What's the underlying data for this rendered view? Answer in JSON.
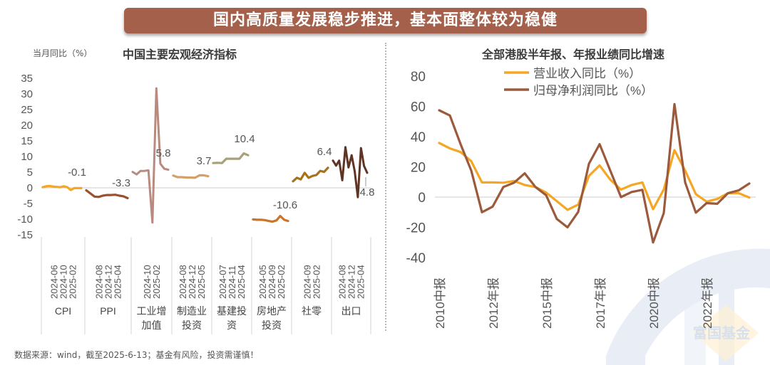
{
  "banner": {
    "title": "国内高质量发展稳步推进，基本面整体较为稳健"
  },
  "footer": {
    "text": "数据来源：wind，截至2025-6-13；基金有风险，投资需谨慎！"
  },
  "watermark": {
    "text": "富国基金"
  },
  "colors": {
    "banner": "#a4604a",
    "revenue": "#f5a623",
    "profit": "#9c5a3c",
    "zero": "#cccccc"
  },
  "chart_data": [
    {
      "type": "line",
      "title": "中国主要宏观经济指标",
      "ylabel": "当月同比（%）",
      "ylim": [
        -15,
        35
      ],
      "yticks": [
        35,
        30,
        25,
        20,
        15,
        10,
        5,
        0,
        -5,
        -10,
        -15
      ],
      "grid": false,
      "groups": [
        {
          "name": "CPI",
          "color": "#f5a623",
          "ticks": [
            "2024-06",
            "2024-10",
            "2025-02"
          ],
          "end_label": "-0.1",
          "values": [
            0.2,
            0.5,
            0.6,
            0.4,
            0.3,
            0.2,
            0.5,
            0.2,
            -0.7,
            -0.1,
            -0.1,
            -0.1
          ]
        },
        {
          "name": "PPI",
          "color": "#9c4f2e",
          "ticks": [
            "2024-08",
            "2024-12",
            "2025-04"
          ],
          "end_label": "-3.3",
          "values": [
            -0.8,
            -1.8,
            -2.8,
            -2.9,
            -2.5,
            -2.3,
            -2.3,
            -2.2,
            -2.5,
            -2.7,
            -3.3
          ]
        },
        {
          "name": "工业增加值",
          "color": "#b98a7e",
          "ticks": [
            "2024-10",
            "2025-02"
          ],
          "end_label": "5.8",
          "values": [
            5.1,
            4.3,
            5.4,
            5.4,
            5.6,
            -11.1,
            31.8,
            7.7,
            6.1,
            5.8
          ]
        },
        {
          "name": "制造业投资",
          "color": "#d4a06a",
          "ticks": [
            "2024-08",
            "2024-12",
            "2025-05"
          ],
          "end_label": "3.7",
          "values": [
            3.9,
            3.4,
            3.4,
            3.3,
            3.3,
            3.2,
            4.0,
            4.0,
            3.7
          ]
        },
        {
          "name": "基建投资",
          "color": "#a8a07a",
          "ticks": [
            "2024-07",
            "2024-11",
            "2025-04"
          ],
          "end_label": "10.4",
          "values": [
            7.9,
            8.0,
            7.9,
            9.3,
            9.3,
            9.3,
            9.3,
            11.0,
            10.4
          ]
        },
        {
          "name": "房地产投资",
          "color": "#c9742a",
          "ticks": [
            "2024-05",
            "2024-09",
            "2025-02"
          ],
          "end_label": "-10.6",
          "values": [
            -10.1,
            -10.2,
            -10.2,
            -10.3,
            -10.6,
            -10.8,
            -10.4,
            -9.0,
            -10.2,
            -10.6
          ]
        },
        {
          "name": "社零",
          "color": "#a8721a",
          "ticks": [
            "2024-09",
            "2025-02"
          ],
          "end_label": "6.4",
          "values": [
            2.1,
            3.2,
            2.7,
            4.8,
            3.2,
            3.8,
            4.1,
            5.4,
            5.1,
            6.4
          ]
        },
        {
          "name": "出口",
          "color": "#5e3424",
          "ticks": [
            "2024-08",
            "2024-12",
            "2025-04"
          ],
          "end_label": "4.8",
          "values": [
            8.7,
            7.1,
            8.7,
            2.4,
            13.0,
            6.5,
            10.4,
            5.3,
            -3.0,
            12.7,
            7.0,
            4.8
          ]
        }
      ]
    },
    {
      "type": "line",
      "title": "全部港股半年报、年报业绩同比增速",
      "ylim": [
        -40,
        80
      ],
      "yticks": [
        80,
        60,
        40,
        20,
        0,
        -20,
        -40
      ],
      "grid": false,
      "legend": "top-center",
      "x_tick_labels": [
        "2010中报",
        "2012年报",
        "2015中报",
        "2017年报",
        "2020中报",
        "2022年报"
      ],
      "x_tick_every": 5,
      "series": [
        {
          "name": "营业收入同比（%）",
          "color": "#f5a623",
          "values": [
            35.8,
            32.2,
            29.8,
            23.7,
            9.7,
            9.7,
            9.5,
            10.7,
            8.0,
            6.7,
            3.0,
            -2.7,
            -8.4,
            -5.0,
            14.0,
            21.0,
            11.5,
            5.0,
            8.0,
            9.7,
            -8.0,
            5.0,
            31.0,
            17.5,
            2.0,
            -3.0,
            -1.2,
            2.6,
            2.6,
            -0.3
          ]
        },
        {
          "name": "归母净利润同比（%）",
          "color": "#9c5a3c",
          "values": [
            57.4,
            54.0,
            35.0,
            17.5,
            -10.0,
            -6.3,
            6.7,
            9.5,
            15.7,
            6.7,
            1.2,
            -14.5,
            -20.0,
            -9.8,
            22.0,
            35.0,
            17.5,
            0.0,
            3.4,
            4.8,
            -30.0,
            -10.6,
            61.5,
            9.7,
            -10.3,
            -4.0,
            -4.4,
            2.6,
            4.4,
            9.0
          ]
        }
      ]
    }
  ]
}
